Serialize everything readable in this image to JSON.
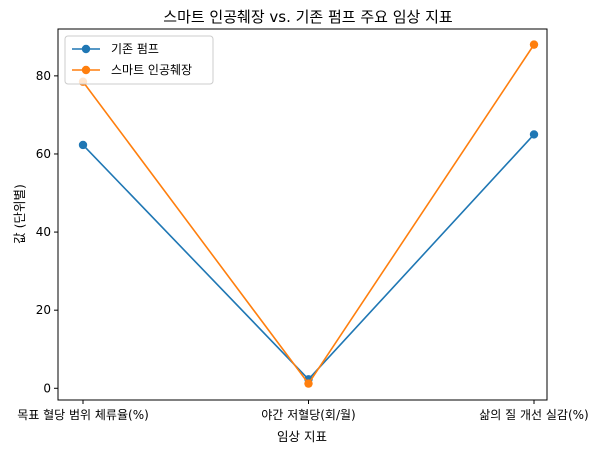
{
  "chart_data": {
    "type": "line",
    "title": "스마트 인공췌장 vs. 기존 펌프 주요 임상 지표",
    "xlabel": "임상 지표",
    "ylabel": "값 (단위별)",
    "categories": [
      "목표 혈당 범위 체류율(%)",
      "야간 저혈당(회/월)",
      "삶의 질 개선 실감(%)"
    ],
    "series": [
      {
        "name": "기존 펌프",
        "color": "#1f77b4",
        "values": [
          62.3,
          2.3,
          65.0
        ]
      },
      {
        "name": "스마트 인공췌장",
        "color": "#ff7f0e",
        "values": [
          78.5,
          1.2,
          88.0
        ]
      }
    ],
    "ylim": [
      -3,
      92
    ],
    "yticks": [
      "0",
      "20",
      "40",
      "60",
      "80"
    ],
    "legend_position": "top-left",
    "grid": false
  }
}
